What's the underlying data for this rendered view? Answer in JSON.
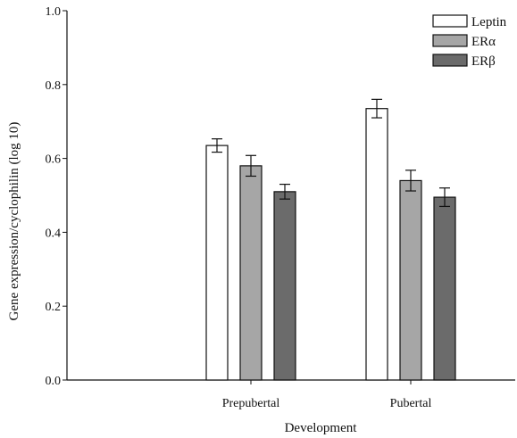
{
  "chart_data": {
    "type": "bar",
    "title": "",
    "xlabel": "Development",
    "ylabel": "Gene expression/cyclophilin (log 10)",
    "ylim": [
      0,
      1.0
    ],
    "yticks": [
      "0.0",
      "0.2",
      "0.4",
      "0.6",
      "0.8",
      "1.0"
    ],
    "categories": [
      "Prepubertal",
      "Pubertal"
    ],
    "series": [
      {
        "name": "Leptin",
        "color": "#ffffff",
        "values": [
          0.635,
          0.735
        ],
        "errors": [
          0.018,
          0.025
        ]
      },
      {
        "name": "ERα",
        "color": "#a6a6a6",
        "values": [
          0.58,
          0.54
        ],
        "errors": [
          0.028,
          0.028
        ]
      },
      {
        "name": "ERβ",
        "color": "#6b6b6b",
        "values": [
          0.51,
          0.495
        ],
        "errors": [
          0.02,
          0.025
        ]
      }
    ],
    "legend_position": "top-right",
    "grid": false
  }
}
